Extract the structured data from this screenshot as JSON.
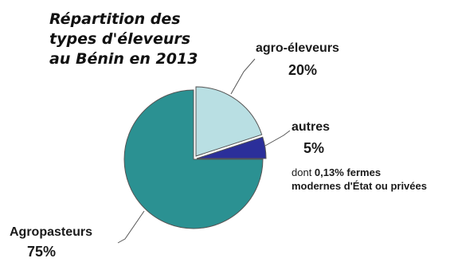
{
  "chart_data": {
    "type": "pie",
    "title": [
      "Répartition des",
      "types d'éleveurs",
      "au Bénin en 2013"
    ],
    "slices": [
      {
        "label": "Agropasteurs",
        "value": 75,
        "value_label": "75%",
        "color": "#2b9192"
      },
      {
        "label": "agro-éleveurs",
        "value": 20,
        "value_label": "20%",
        "color": "#b9dfe3"
      },
      {
        "label": "autres",
        "value": 5,
        "value_label": "5%",
        "color": "#2b2f9a"
      }
    ],
    "annotation": {
      "prefix": "dont ",
      "value": "0,13%",
      "line1_rest": " fermes",
      "line2": "modernes d'État ou privées"
    }
  }
}
